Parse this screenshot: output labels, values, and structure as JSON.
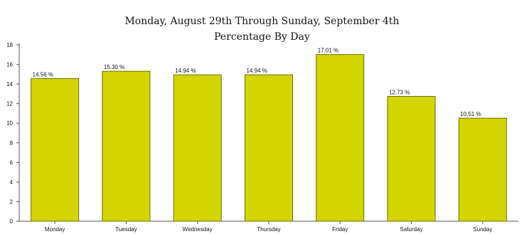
{
  "chart_data": {
    "type": "bar",
    "title": "Monday, August 29th Through Sunday, September 4th",
    "subtitle": "Percentage By Day",
    "categories": [
      "Monday",
      "Tuesday",
      "Wednesday",
      "Thursday",
      "Friday",
      "Saturday",
      "Sunday"
    ],
    "values": [
      14.56,
      15.3,
      14.94,
      14.94,
      17.01,
      12.73,
      10.51
    ],
    "data_labels": [
      "14.56 %",
      "15.30 %",
      "14.94 %",
      "14.94 %",
      "17.01 %",
      "12.73 %",
      "10.51 %"
    ],
    "xlabel": "",
    "ylabel": "",
    "ylim": [
      0,
      18
    ],
    "yticks": [
      0,
      2,
      4,
      6,
      8,
      10,
      12,
      14,
      16,
      18
    ],
    "grid": false,
    "colors": {
      "bar_fill": "#d4d400",
      "bar_stroke": "#6e6e00",
      "axis": "#555555"
    }
  }
}
